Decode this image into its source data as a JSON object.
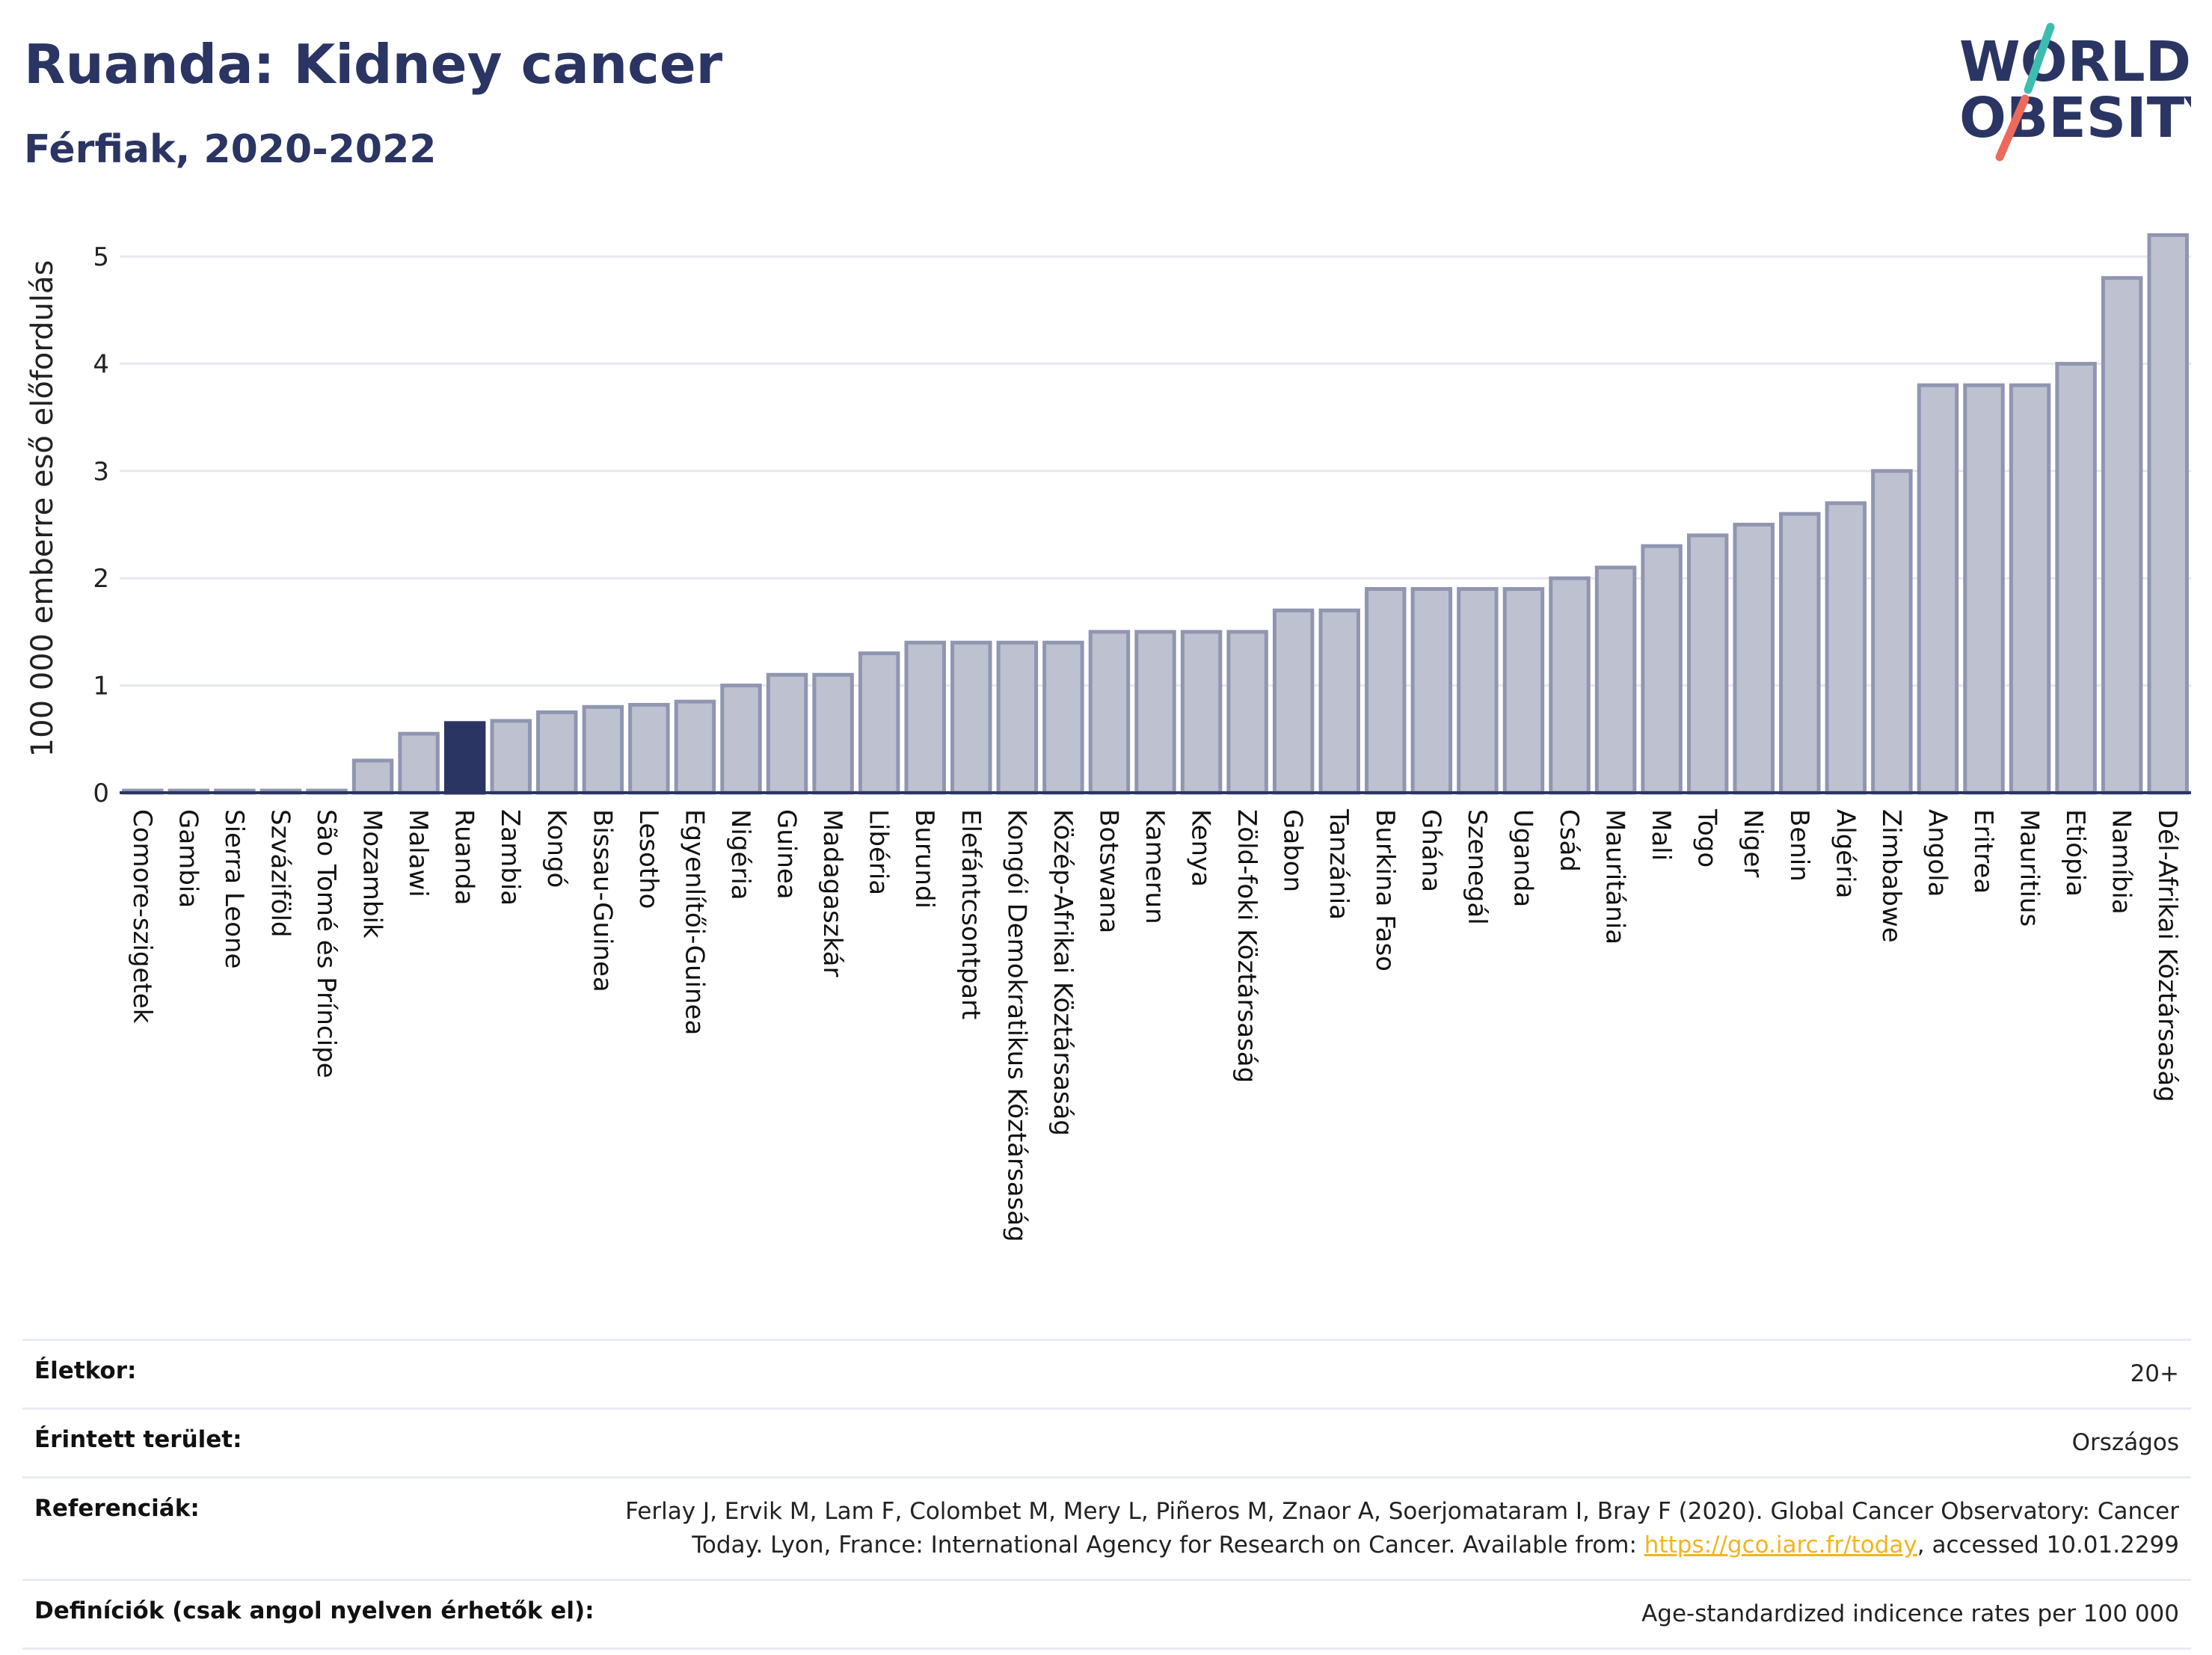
{
  "header": {
    "title": "Ruanda: Kidney cancer",
    "subtitle": "Férfiak, 2020-2022"
  },
  "logo": {
    "line1": "WORLD",
    "line2": "OBESITY"
  },
  "colors": {
    "title": "#2a3563",
    "bar_default": "#bdc1d0",
    "bar_default_stroke": "#9096b0",
    "bar_highlight": "#2a3563",
    "grid": "#e6e8ee",
    "axis": "#2a3563",
    "link": "#f1b51c",
    "logo_teal": "#3dbdb0",
    "logo_coral": "#ec6a5c"
  },
  "chart_data": {
    "type": "bar",
    "ylabel": "100 000 emberre eső előfordulás",
    "ylim": [
      0,
      5.3
    ],
    "yticks": [
      0,
      1,
      2,
      3,
      4,
      5
    ],
    "grid": true,
    "highlight": "Ruanda",
    "categories": [
      "Comore-szigetek",
      "Gambia",
      "Sierra Leone",
      "Szváziföld",
      "São Tomé és Príncipe",
      "Mozambik",
      "Malawi",
      "Ruanda",
      "Zambia",
      "Kongó",
      "Bissau-Guinea",
      "Lesotho",
      "Egyenlítői-Guinea",
      "Nigéria",
      "Guinea",
      "Madagaszkár",
      "Libéria",
      "Burundi",
      "Elefántcsontpart",
      "Kongói Demokratikus Köztársaság",
      "Közép-Afrikai Köztársaság",
      "Botswana",
      "Kamerun",
      "Kenya",
      "Zöld-foki Köztársaság",
      "Gabon",
      "Tanzánia",
      "Burkina Faso",
      "Ghána",
      "Szenegál",
      "Uganda",
      "Csád",
      "Mauritánia",
      "Mali",
      "Togo",
      "Niger",
      "Benin",
      "Algéria",
      "Zimbabwe",
      "Angola",
      "Eritrea",
      "Mauritius",
      "Etiópia",
      "Namíbia",
      "Dél-Afrikai Köztársaság"
    ],
    "values": [
      0.02,
      0.02,
      0.02,
      0.02,
      0.02,
      0.3,
      0.55,
      0.65,
      0.67,
      0.75,
      0.8,
      0.82,
      0.85,
      1.0,
      1.1,
      1.1,
      1.3,
      1.4,
      1.4,
      1.4,
      1.4,
      1.5,
      1.5,
      1.5,
      1.5,
      1.7,
      1.7,
      1.9,
      1.9,
      1.9,
      1.9,
      2.0,
      2.1,
      2.3,
      2.4,
      2.5,
      2.6,
      2.7,
      3.0,
      3.8,
      3.8,
      3.8,
      4.0,
      4.8,
      5.2
    ]
  },
  "info": [
    {
      "label": "Életkor:",
      "value": "20+"
    },
    {
      "label": "Érintett terület:",
      "value": "Országos"
    },
    {
      "label": "Referenciák:",
      "value": "Ferlay J, Ervik M, Lam F, Colombet M, Mery L, Piñeros M, Znaor A, Soerjomataram I, Bray F (2020). Global Cancer Observatory: Cancer Today. Lyon, France: International Agency for Research on Cancer. Available from: ",
      "link": "https://gco.iarc.fr/today",
      "suffix": ", accessed 10.01.2299"
    },
    {
      "label": "Definíciók (csak angol nyelven érhetők el):",
      "value": "Age-standardized indicence rates per 100 000"
    }
  ]
}
